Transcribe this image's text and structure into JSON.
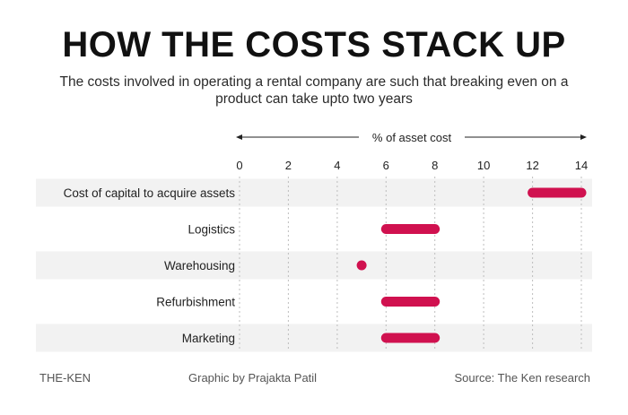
{
  "title": "HOW THE COSTS STACK UP",
  "subtitle": "The costs involved in operating a rental company are such that breaking even on a product can take upto two years",
  "chart_data": {
    "type": "bar",
    "orientation": "horizontal-range",
    "axis_label": "% of asset cost",
    "xlim": [
      0,
      14
    ],
    "ticks": [
      0,
      2,
      4,
      6,
      8,
      10,
      12,
      14
    ],
    "grid": true,
    "categories": [
      "Cost of capital to acquire assets",
      "Logistics",
      "Warehousing",
      "Refurbishment",
      "Marketing"
    ],
    "ranges": [
      [
        12,
        14
      ],
      [
        6,
        8
      ],
      [
        5,
        5
      ],
      [
        6,
        8
      ],
      [
        6,
        8
      ]
    ],
    "bar_color": "#d0114f",
    "row_stripe_color": "#f2f2f2"
  },
  "footer": {
    "brand": "THE-KEN",
    "credit": "Graphic by Prajakta Patil",
    "source": "Source: The Ken research"
  }
}
